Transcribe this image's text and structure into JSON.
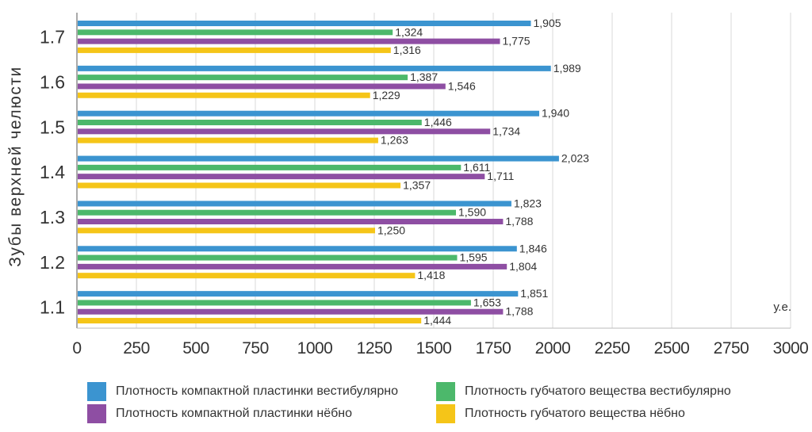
{
  "chart_data": {
    "type": "bar",
    "orientation": "horizontal",
    "ylabel": "Зубы верхней челюсти",
    "unit": "у.е.",
    "categories": [
      "1.7",
      "1.6",
      "1.5",
      "1.4",
      "1.3",
      "1.2",
      "1.1"
    ],
    "xlim": [
      0,
      3000
    ],
    "xticks": [
      "0",
      "250",
      "500",
      "750",
      "1000",
      "1250",
      "1500",
      "1750",
      "2000",
      "2250",
      "2500",
      "2750",
      "3000"
    ],
    "grid": "vertical",
    "legend_position": "bottom",
    "series": [
      {
        "name": "Плотность компактной пластинки вестибулярно",
        "color": "#3b94d0",
        "values": [
          1905,
          1989,
          1940,
          2023,
          1823,
          1846,
          1851
        ],
        "labels": [
          "1,905",
          "1,989",
          "1,940",
          "2,023",
          "1,823",
          "1,846",
          "1,851"
        ]
      },
      {
        "name": "Плотность губчатого вещества вестибулярно",
        "color": "#4cb86b",
        "values": [
          1324,
          1387,
          1446,
          1611,
          1590,
          1595,
          1653
        ],
        "labels": [
          "1,324",
          "1,387",
          "1,446",
          "1,611",
          "1,590",
          "1,595",
          "1,653"
        ]
      },
      {
        "name": "Плотность компактной пластинки нёбно",
        "color": "#8e4ea3",
        "values": [
          1775,
          1546,
          1734,
          1711,
          1788,
          1804,
          1788
        ],
        "labels": [
          "1,775",
          "1,546",
          "1,734",
          "1,711",
          "1,788",
          "1,804",
          "1,788"
        ]
      },
      {
        "name": "Плотность губчатого вещества нёбно",
        "color": "#f5c518",
        "values": [
          1316,
          1229,
          1263,
          1357,
          1250,
          1418,
          1444
        ],
        "labels": [
          "1,316",
          "1,229",
          "1,263",
          "1,357",
          "1,250",
          "1,418",
          "1,444"
        ]
      }
    ]
  }
}
